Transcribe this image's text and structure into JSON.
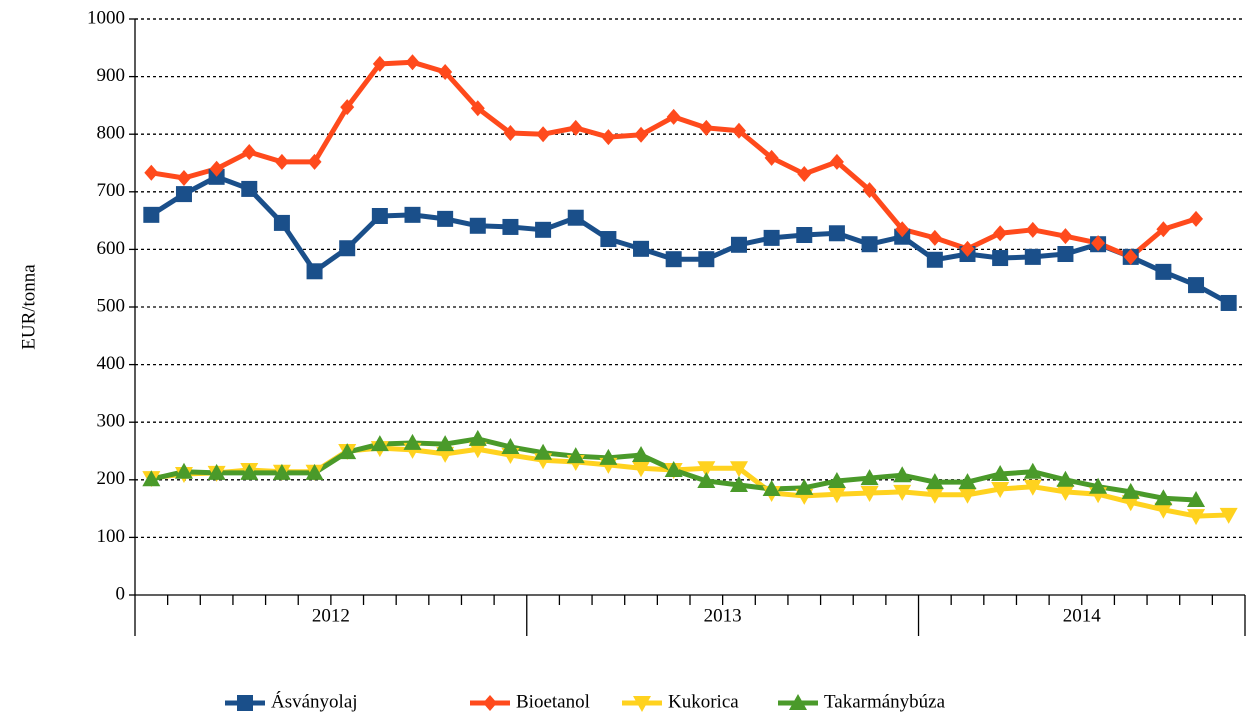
{
  "chart_data": {
    "type": "line",
    "y_label": "EUR/tonna",
    "categories": [
      null,
      null,
      null,
      null,
      null,
      null,
      null,
      null,
      null,
      null,
      null,
      null,
      null,
      null,
      null,
      null,
      null,
      null,
      null,
      null,
      null,
      null,
      null,
      null,
      null,
      null,
      null,
      null,
      null,
      null,
      null,
      null,
      null,
      null
    ],
    "x_groups": [
      {
        "label": "2012",
        "count": 12
      },
      {
        "label": "2013",
        "count": 12
      },
      {
        "label": "2014",
        "count": 10
      }
    ],
    "ylim": [
      0,
      1000
    ],
    "yticks": [
      0,
      100,
      200,
      300,
      400,
      500,
      600,
      700,
      800,
      900,
      1000
    ],
    "grid": true,
    "legend": "bottom",
    "series": [
      {
        "name": "Ásványolaj",
        "color": "#1a4f8a",
        "marker": "square",
        "values": [
          660,
          696,
          726,
          705,
          646,
          562,
          602,
          658,
          660,
          653,
          641,
          639,
          634,
          655,
          618,
          601,
          583,
          583,
          608,
          620,
          625,
          628,
          609,
          622,
          582,
          592,
          585,
          587,
          592,
          609,
          587,
          561,
          538,
          507
        ]
      },
      {
        "name": "Bioetanol",
        "color": "#ff4a1c",
        "marker": "diamond",
        "values": [
          733,
          724,
          740,
          769,
          752,
          752,
          847,
          922,
          925,
          908,
          845,
          802,
          800,
          811,
          795,
          799,
          830,
          811,
          806,
          759,
          731,
          752,
          703,
          635,
          620,
          601,
          628,
          634,
          623,
          611,
          587,
          635,
          653,
          null
        ]
      },
      {
        "name": "Kukorica",
        "color": "#ffd21f",
        "marker": "triangle-down",
        "values": [
          203,
          210,
          212,
          217,
          214,
          214,
          250,
          255,
          252,
          245,
          253,
          243,
          234,
          231,
          226,
          220,
          217,
          220,
          220,
          177,
          172,
          175,
          177,
          179,
          174,
          174,
          184,
          188,
          179,
          175,
          161,
          148,
          137,
          139
        ]
      },
      {
        "name": "Takarmánybúza",
        "color": "#4a9a2a",
        "marker": "triangle-up",
        "values": [
          201,
          214,
          212,
          212,
          212,
          212,
          248,
          262,
          264,
          262,
          271,
          257,
          247,
          241,
          238,
          243,
          217,
          198,
          191,
          184,
          186,
          198,
          203,
          208,
          196,
          196,
          210,
          214,
          200,
          188,
          179,
          168,
          165,
          null
        ]
      }
    ]
  }
}
